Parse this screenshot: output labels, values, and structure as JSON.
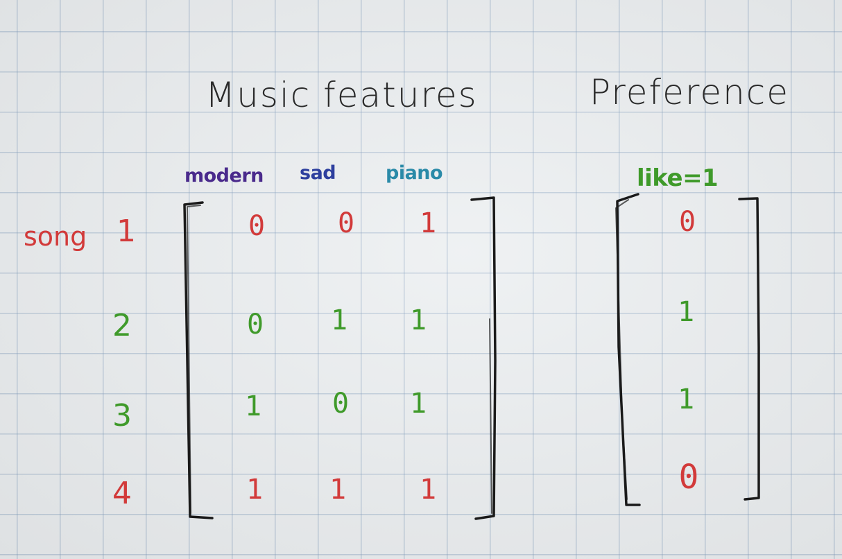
{
  "headings": {
    "music_features": "Music features",
    "preference": "Preference"
  },
  "feature_labels": [
    {
      "text": "modern",
      "color": "#4a2a8c"
    },
    {
      "text": "sad",
      "color": "#2d3f9e"
    },
    {
      "text": "piano",
      "color": "#2a8aa8"
    }
  ],
  "preference_label": {
    "text": "like=1",
    "color": "#3f9a2a"
  },
  "row_prefix": {
    "text": "song",
    "color": "#d23a3a"
  },
  "rows": [
    {
      "label": "1",
      "label_color": "#d23a3a",
      "features": [
        "0",
        "0",
        "1"
      ],
      "feature_color": "#d23a3a",
      "preference": "0",
      "preference_color": "#d23a3a"
    },
    {
      "label": "2",
      "label_color": "#3f9a2a",
      "features": [
        "0",
        "1",
        "1"
      ],
      "feature_color": "#3f9a2a",
      "preference": "1",
      "preference_color": "#3f9a2a"
    },
    {
      "label": "3",
      "label_color": "#3f9a2a",
      "features": [
        "1",
        "0",
        "1"
      ],
      "feature_color": "#3f9a2a",
      "preference": "1",
      "preference_color": "#3f9a2a"
    },
    {
      "label": "4",
      "label_color": "#d23a3a",
      "features": [
        "1",
        "1",
        "1"
      ],
      "feature_color": "#d23a3a",
      "preference": "0",
      "preference_color": "#d23a3a"
    }
  ],
  "colors": {
    "ink": "#1a1a1a",
    "grid": "#7896b9",
    "paper": "#eceff1"
  }
}
